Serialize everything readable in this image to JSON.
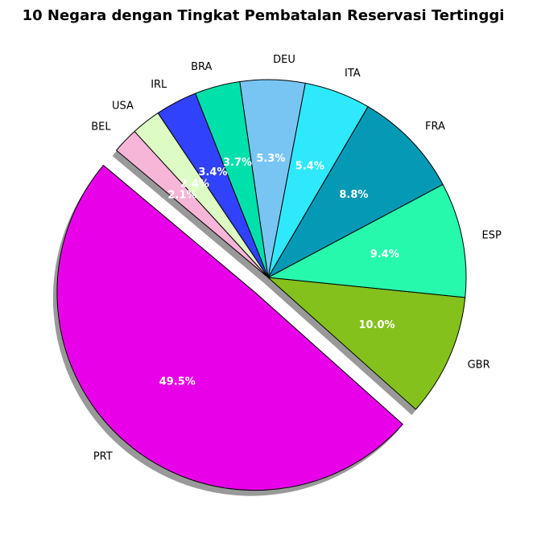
{
  "chart_data": {
    "type": "pie",
    "title": "10 Negara dengan Tingkat Pembatalan Reservasi Tertinggi",
    "start_angle_deg": 140,
    "direction": "counterclockwise",
    "explode": [
      "PRT"
    ],
    "shadow": true,
    "slices": [
      {
        "label": "PRT",
        "value": 49.5,
        "pct_label": "49.5%",
        "color": "#e800e8"
      },
      {
        "label": "GBR",
        "value": 10.0,
        "pct_label": "10.0%",
        "color": "#84c11c"
      },
      {
        "label": "ESP",
        "value": 9.4,
        "pct_label": "9.4%",
        "color": "#26f9ac"
      },
      {
        "label": "FRA",
        "value": 8.8,
        "pct_label": "8.8%",
        "color": "#0499b5"
      },
      {
        "label": "ITA",
        "value": 5.4,
        "pct_label": "5.4%",
        "color": "#2ee9fc"
      },
      {
        "label": "DEU",
        "value": 5.3,
        "pct_label": "5.3%",
        "color": "#78c5f4"
      },
      {
        "label": "BRA",
        "value": 3.7,
        "pct_label": "3.7%",
        "color": "#00e0ab"
      },
      {
        "label": "IRL",
        "value": 3.4,
        "pct_label": "3.4%",
        "color": "#3142fc"
      },
      {
        "label": "USA",
        "value": 2.4,
        "pct_label": "2.4%",
        "color": "#dcfcc4"
      },
      {
        "label": "BEL",
        "value": 2.1,
        "pct_label": "2.1%",
        "color": "#f7b5d7"
      }
    ]
  }
}
